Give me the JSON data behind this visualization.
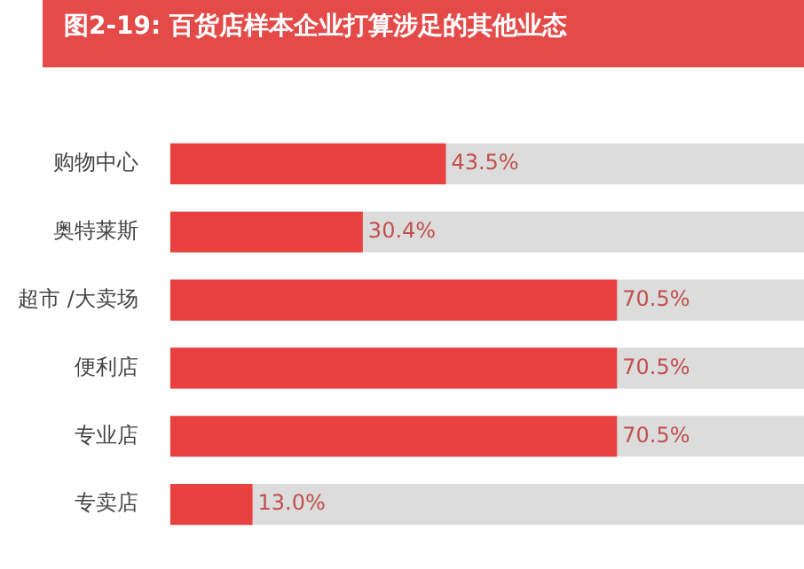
{
  "chart_data": {
    "type": "bar",
    "orientation": "horizontal",
    "title": "图2-19: 百货店样本企业打算涉足的其他业态",
    "categories": [
      "购物中心",
      "奥特莱斯",
      "超市 /大卖场",
      "便利店",
      "专业店",
      "专卖店"
    ],
    "values": [
      43.5,
      30.4,
      70.5,
      70.5,
      70.5,
      13.0
    ],
    "value_labels": [
      "43.5%",
      "30.4%",
      "70.5%",
      "70.5%",
      "70.5%",
      "13.0%"
    ],
    "color": "#e8413f",
    "xlim": [
      0,
      100
    ],
    "tick_labels": "y"
  }
}
